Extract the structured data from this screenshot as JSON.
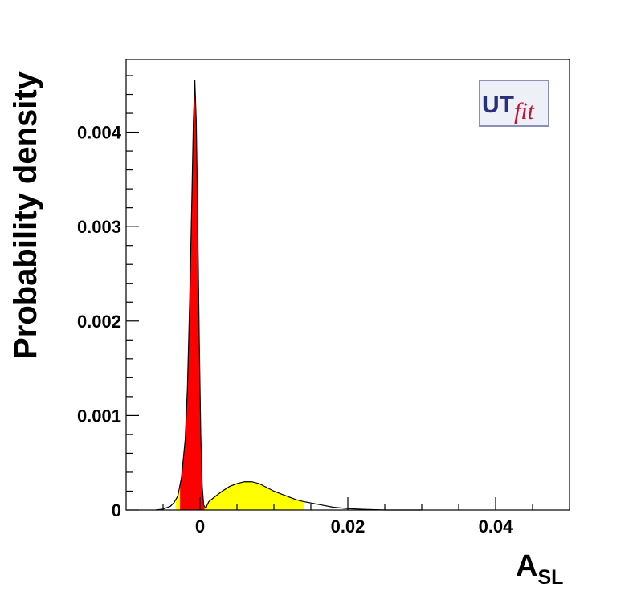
{
  "chart_data": {
    "type": "density",
    "xlabel": "A",
    "xlabel_sub": "SL",
    "ylabel": "Probability density",
    "logo": {
      "main": "UT",
      "sub": "fit"
    },
    "xlim": [
      -0.01,
      0.05
    ],
    "ylim": [
      0,
      0.00477
    ],
    "xticks": [
      0,
      0.02,
      0.04
    ],
    "yticks": [
      0,
      0.001,
      0.002,
      0.003,
      0.004
    ],
    "xminorticks": [
      -0.005,
      0.005,
      0.01,
      0.015,
      0.025,
      0.03,
      0.035,
      0.045
    ],
    "yminorticks": [
      0.0002,
      0.0004,
      0.0006,
      0.0008,
      0.0012,
      0.0014,
      0.0016,
      0.0018,
      0.0022,
      0.0024,
      0.0026,
      0.0028,
      0.0032,
      0.0034,
      0.0036,
      0.0038,
      0.0042,
      0.0044,
      0.0046
    ],
    "color": "#000000",
    "x": [
      -0.006,
      -0.005,
      -0.004,
      -0.0035,
      -0.003,
      -0.0025,
      -0.002,
      -0.0017,
      -0.0014,
      -0.0011,
      -0.0009,
      -0.0007,
      -0.0005,
      -0.0003,
      -0.0001,
      0.0001,
      0.0003,
      0.0005,
      0.0008,
      0.001,
      0.0012,
      0.002,
      0.003,
      0.004,
      0.005,
      0.006,
      0.007,
      0.008,
      0.009,
      0.01,
      0.011,
      0.012,
      0.013,
      0.014,
      0.016,
      0.018,
      0.02,
      0.022,
      0.025,
      0.03
    ],
    "y": [
      0,
      1e-05,
      4e-05,
      8e-05,
      0.00015,
      0.00035,
      0.00075,
      0.0013,
      0.0022,
      0.0033,
      0.0041,
      0.00455,
      0.0041,
      0.003,
      0.0018,
      0.0008,
      0.00025,
      5e-05,
      2e-05,
      6e-05,
      9e-05,
      0.00014,
      0.0002,
      0.00025,
      0.00028,
      0.0003,
      0.0003,
      0.00028,
      0.00024,
      0.0002,
      0.00017,
      0.00014,
      0.00011,
      9e-05,
      6e-05,
      3e-05,
      1.5e-05,
      8e-06,
      0,
      0
    ],
    "regions": [
      {
        "color": "#ffff00",
        "x": [
          -0.0033,
          0.0141
        ]
      },
      {
        "color": "#ff0000",
        "x": [
          -0.0027,
          0.0006
        ]
      }
    ]
  }
}
